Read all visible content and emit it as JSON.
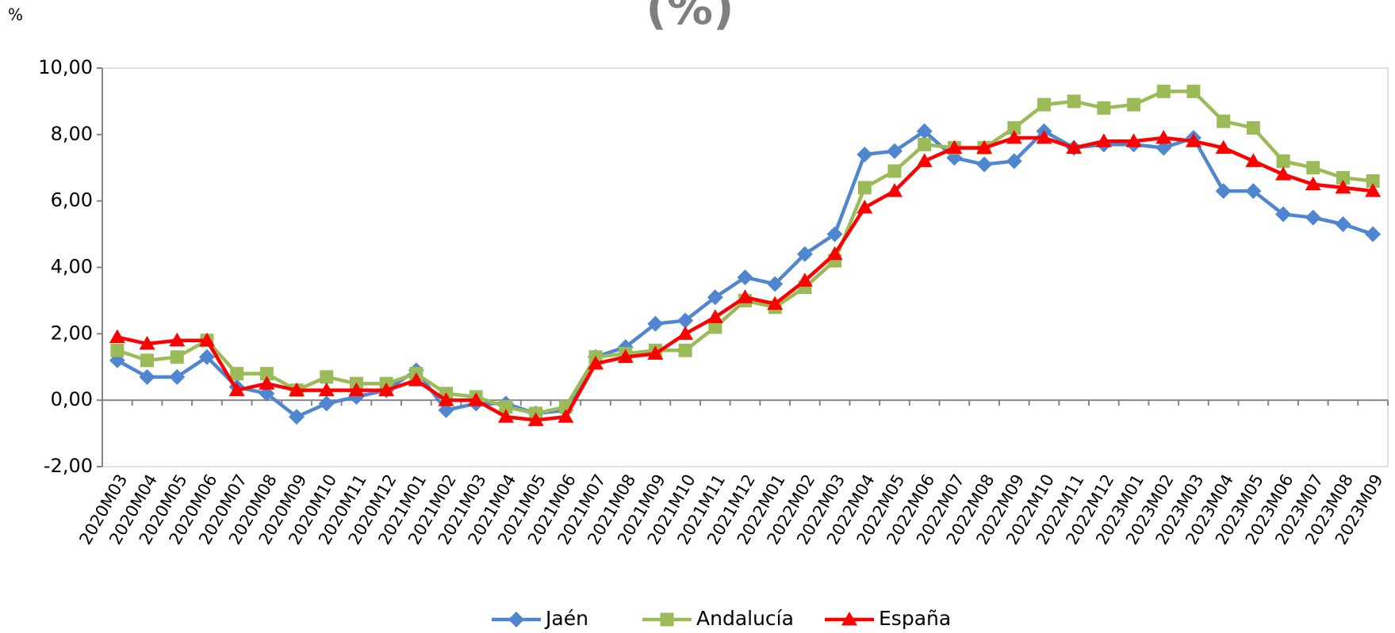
{
  "chart_data": {
    "type": "line",
    "title": "(%)",
    "y_label": "%",
    "categories": [
      "2020M03",
      "2020M04",
      "2020M05",
      "2020M06",
      "2020M07",
      "2020M08",
      "2020M09",
      "2020M10",
      "2020M11",
      "2020M12",
      "2021M01",
      "2021M02",
      "2021M03",
      "2021M04",
      "2021M05",
      "2021M06",
      "2021M07",
      "2021M08",
      "2021M09",
      "2021M10",
      "2021M11",
      "2021M12",
      "2022M01",
      "2022M02",
      "2022M03",
      "2022M04",
      "2022M05",
      "2022M06",
      "2022M07",
      "2022M08",
      "2022M09",
      "2022M10",
      "2022M11",
      "2022M12",
      "2023M01",
      "2023M02",
      "2023M03",
      "2023M04",
      "2023M05",
      "2023M06",
      "2023M07",
      "2023M08",
      "2023M09"
    ],
    "series": [
      {
        "name": "Jaén",
        "color": "#4f86cf",
        "marker": "diamond",
        "values": [
          1.2,
          0.7,
          0.7,
          1.3,
          0.4,
          0.2,
          -0.5,
          -0.1,
          0.1,
          0.3,
          0.9,
          -0.3,
          -0.1,
          -0.1,
          -0.4,
          -0.3,
          1.3,
          1.6,
          2.3,
          2.4,
          3.1,
          3.7,
          3.5,
          4.4,
          5.0,
          7.4,
          7.5,
          8.1,
          7.3,
          7.1,
          7.2,
          8.1,
          7.6,
          7.7,
          7.7,
          7.6,
          7.9,
          6.3,
          6.3,
          5.6,
          5.5,
          5.3,
          5.0
        ]
      },
      {
        "name": "Andalucía",
        "color": "#9bbb59",
        "marker": "square",
        "values": [
          1.5,
          1.2,
          1.3,
          1.8,
          0.8,
          0.8,
          0.3,
          0.7,
          0.5,
          0.5,
          0.8,
          0.2,
          0.1,
          -0.2,
          -0.4,
          -0.2,
          1.3,
          1.4,
          1.5,
          1.5,
          2.2,
          3.0,
          2.8,
          3.4,
          4.2,
          6.4,
          6.9,
          7.7,
          7.6,
          7.6,
          8.2,
          8.9,
          9.0,
          8.8,
          8.9,
          9.3,
          9.3,
          8.4,
          8.2,
          7.2,
          7.0,
          6.7,
          6.6
        ]
      },
      {
        "name": "España",
        "color": "#ff0000",
        "marker": "triangle",
        "values": [
          1.9,
          1.7,
          1.8,
          1.8,
          0.3,
          0.5,
          0.3,
          0.3,
          0.3,
          0.3,
          0.6,
          0.0,
          0.0,
          -0.5,
          -0.6,
          -0.5,
          1.1,
          1.3,
          1.4,
          2.0,
          2.5,
          3.1,
          2.9,
          3.6,
          4.4,
          5.8,
          6.3,
          7.2,
          7.6,
          7.6,
          7.9,
          7.9,
          7.6,
          7.8,
          7.8,
          7.9,
          7.8,
          7.6,
          7.2,
          6.8,
          6.5,
          6.4,
          6.3
        ]
      }
    ],
    "ylim": [
      -2,
      10
    ],
    "yticks": [
      {
        "value": -2,
        "label": "-2,00"
      },
      {
        "value": 0,
        "label": "0,00"
      },
      {
        "value": 2,
        "label": "2,00"
      },
      {
        "value": 4,
        "label": "4,00"
      },
      {
        "value": 6,
        "label": "6,00"
      },
      {
        "value": 8,
        "label": "8,00"
      },
      {
        "value": 10,
        "label": "10,00"
      }
    ],
    "legend": "bottom"
  }
}
